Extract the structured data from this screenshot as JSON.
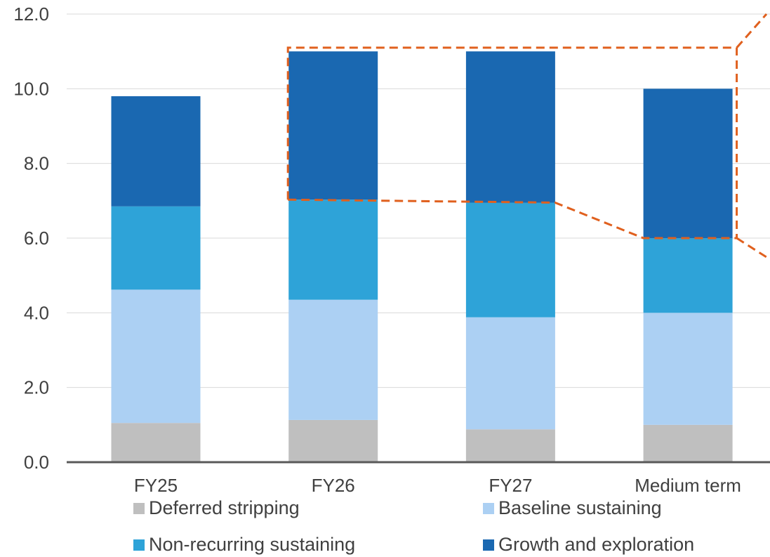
{
  "chart_data": {
    "type": "bar",
    "stacked": true,
    "categories": [
      "FY25",
      "FY26",
      "FY27",
      "Medium term"
    ],
    "series": [
      {
        "name": "Deferred stripping",
        "color": "#bfbfbf",
        "values": [
          1.05,
          1.13,
          0.88,
          1.0
        ]
      },
      {
        "name": "Baseline sustaining",
        "color": "#acd0f3",
        "values": [
          3.57,
          3.22,
          3.0,
          3.0
        ]
      },
      {
        "name": "Non-recurring sustaining",
        "color": "#2ea3d8",
        "values": [
          2.23,
          2.68,
          3.07,
          2.0
        ]
      },
      {
        "name": "Growth and exploration",
        "color": "#1a68b1",
        "values": [
          2.95,
          3.97,
          4.05,
          4.0
        ]
      }
    ],
    "yticks": [
      "0.0",
      "2.0",
      "4.0",
      "6.0",
      "8.0",
      "10.0",
      "12.0"
    ],
    "ylim": [
      0,
      12
    ],
    "grid": true,
    "legend_position": "bottom",
    "annotation": {
      "style": "dashed",
      "color": "#e0601e"
    }
  }
}
